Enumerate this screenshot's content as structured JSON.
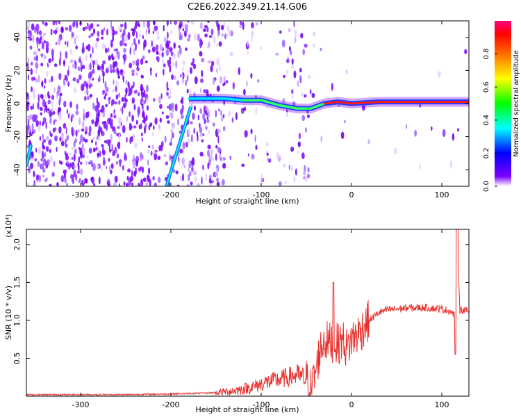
{
  "figure": {
    "title": "C2E6.2022.349.21.14.G06"
  },
  "chart_data": [
    {
      "type": "heatmap",
      "title": "C2E6.2022.349.21.14.G06",
      "xlabel": "Height of straight line (km)",
      "ylabel": "Frequency (Hz)",
      "xlim": [
        -360,
        130
      ],
      "ylim": [
        -50,
        50
      ],
      "x_ticks": [
        -300,
        -200,
        -100,
        0,
        100
      ],
      "y_ticks": [
        -40,
        -20,
        0,
        20,
        40
      ],
      "colorbar": {
        "label": "Normalized spectral amplitude",
        "range": [
          0,
          1
        ],
        "ticks": [
          0.0,
          0.2,
          0.4,
          0.6,
          0.8
        ],
        "colors": [
          "#ffffff",
          "#7b00ff",
          "#0000ff",
          "#00ffff",
          "#00ff00",
          "#ffff00",
          "#ff8000",
          "#ff0000",
          "#ff0080"
        ]
      },
      "ridge": {
        "x": [
          -180,
          -160,
          -140,
          -120,
          -100,
          -80,
          -60,
          -45,
          -30,
          -15,
          0,
          30,
          60,
          90,
          130
        ],
        "y": [
          3,
          3,
          3,
          2,
          2,
          -1,
          -3,
          -3,
          0,
          1,
          0,
          1,
          1,
          1,
          1
        ]
      },
      "streaks": [
        {
          "x": [
            -205,
            -178
          ],
          "y": [
            -50,
            -2
          ]
        },
        {
          "x": [
            -360,
            -355
          ],
          "y": [
            -38,
            -25
          ]
        }
      ]
    },
    {
      "type": "line",
      "xlabel": "Height of straight line (km)",
      "ylabel": "SNR (10 * v/v)",
      "scale_label": "(x10⁴)",
      "xlim": [
        -360,
        130
      ],
      "ylim": [
        0,
        2.2
      ],
      "x_ticks": [
        -300,
        -200,
        -100,
        0,
        100
      ],
      "y_ticks": [
        0.5,
        1.0,
        1.5,
        2.0
      ],
      "line_color": "#e8312e",
      "series": [
        {
          "x": [
            -360,
            -300,
            -250,
            -200,
            -160,
            -130,
            -110,
            -95,
            -80,
            -70,
            -60,
            -50,
            -45,
            -40,
            -35,
            -30,
            -25,
            -20,
            -15,
            -10,
            -5,
            0,
            5,
            10,
            15,
            20,
            30,
            40,
            60,
            80,
            100,
            110,
            115,
            117,
            120,
            130
          ],
          "values": [
            0.02,
            0.02,
            0.02,
            0.03,
            0.04,
            0.07,
            0.12,
            0.18,
            0.22,
            0.25,
            0.28,
            0.22,
            0.1,
            0.3,
            0.6,
            0.75,
            0.7,
            0.72,
            0.68,
            0.75,
            0.62,
            0.75,
            0.8,
            0.85,
            0.95,
            1.0,
            1.1,
            1.14,
            1.16,
            1.17,
            1.15,
            1.12,
            1.05,
            2.05,
            1.14,
            1.12
          ]
        }
      ]
    }
  ]
}
